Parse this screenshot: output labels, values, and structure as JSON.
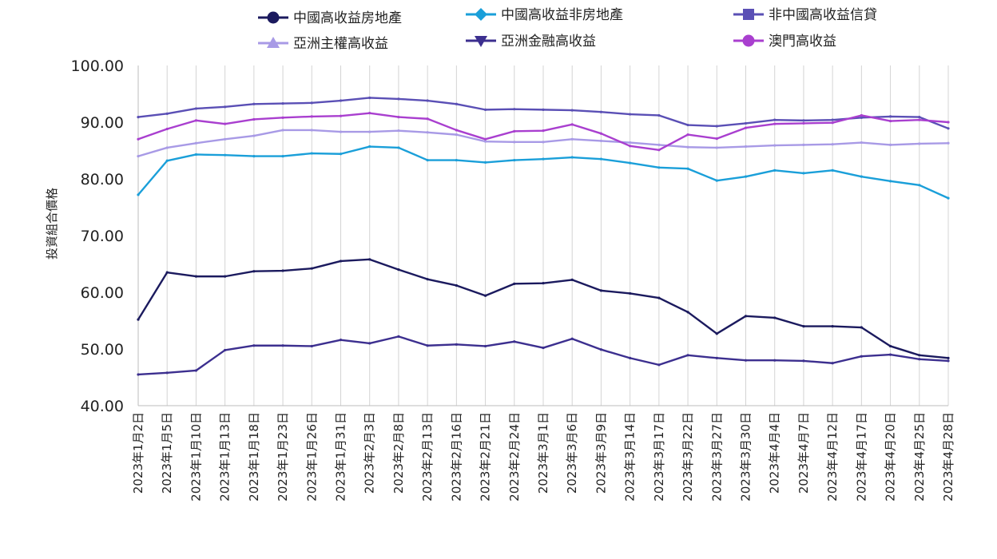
{
  "chart_data": {
    "type": "line",
    "title": "",
    "xlabel": "",
    "ylabel": "投資組合價格",
    "ylim": [
      40,
      100
    ],
    "y_ticks": [
      "40.00",
      "50.00",
      "60.00",
      "70.00",
      "80.00",
      "90.00",
      "100.00"
    ],
    "grid": {
      "x": true,
      "y": false
    },
    "legend_position": "top",
    "categories": [
      "2023年1月2日",
      "2023年1月5日",
      "2023年1月10日",
      "2023年1月13日",
      "2023年1月18日",
      "2023年1月23日",
      "2023年1月26日",
      "2023年1月31日",
      "2023年2月3日",
      "2023年2月8日",
      "2023年2月13日",
      "2023年2月16日",
      "2023年2月21日",
      "2023年2月24日",
      "2023年3月1日",
      "2023年3月6日",
      "2023年3月9日",
      "2023年3月14日",
      "2023年3月17日",
      "2023年3月22日",
      "2023年3月27日",
      "2023年3月30日",
      "2023年4月4日",
      "2023年4月7日",
      "2023年4月12日",
      "2023年4月17日",
      "2023年4月20日",
      "2023年4月25日",
      "2023年4月28日"
    ],
    "series": [
      {
        "name": "中國高收益房地產",
        "color": "#1b1a5e",
        "marker": "circle",
        "values": [
          55.2,
          63.5,
          62.8,
          62.8,
          63.7,
          63.8,
          64.2,
          65.5,
          65.8,
          64.0,
          62.3,
          61.2,
          59.4,
          61.5,
          61.6,
          62.2,
          60.3,
          59.8,
          59.0,
          56.5,
          52.7,
          55.8,
          55.5,
          54.0,
          54.0,
          53.8,
          50.5,
          48.9,
          48.4
        ]
      },
      {
        "name": "中國高收益非房地產",
        "color": "#1a9fd9",
        "marker": "diamond",
        "values": [
          77.2,
          83.2,
          84.3,
          84.2,
          84.0,
          84.0,
          84.5,
          84.4,
          85.7,
          85.5,
          83.3,
          83.3,
          82.9,
          83.3,
          83.5,
          83.8,
          83.5,
          82.8,
          82.0,
          81.8,
          79.7,
          80.4,
          81.5,
          81.0,
          81.5,
          80.4,
          79.6,
          78.9,
          76.6
        ]
      },
      {
        "name": "非中國高收益信貸",
        "color": "#5a4fb5",
        "marker": "square",
        "values": [
          90.9,
          91.5,
          92.4,
          92.7,
          93.2,
          93.3,
          93.4,
          93.8,
          94.3,
          94.1,
          93.8,
          93.2,
          92.2,
          92.3,
          92.2,
          92.1,
          91.8,
          91.4,
          91.2,
          89.5,
          89.3,
          89.8,
          90.4,
          90.3,
          90.4,
          90.8,
          91.0,
          90.9,
          88.9
        ]
      },
      {
        "name": "亞洲主權高收益",
        "color": "#a89ae6",
        "marker": "triangle-up",
        "values": [
          84.0,
          85.5,
          86.3,
          87.0,
          87.6,
          88.6,
          88.6,
          88.3,
          88.3,
          88.5,
          88.2,
          87.8,
          86.6,
          86.5,
          86.5,
          87.0,
          86.7,
          86.4,
          86.0,
          85.6,
          85.5,
          85.7,
          85.9,
          86.0,
          86.1,
          86.4,
          86.0,
          86.2,
          86.3
        ]
      },
      {
        "name": "亞洲金融高收益",
        "color": "#3c2f8f",
        "marker": "triangle-down",
        "values": [
          45.5,
          45.8,
          46.2,
          49.8,
          50.6,
          50.6,
          50.5,
          51.6,
          51.0,
          52.2,
          50.6,
          50.8,
          50.5,
          51.3,
          50.2,
          51.8,
          49.9,
          48.4,
          47.2,
          48.9,
          48.4,
          48.0,
          48.0,
          47.9,
          47.5,
          48.7,
          49.0,
          48.2,
          47.9
        ]
      },
      {
        "name": "澳門高收益",
        "color": "#a93fcf",
        "marker": "circle",
        "values": [
          87.0,
          88.8,
          90.3,
          89.7,
          90.5,
          90.8,
          91.0,
          91.1,
          91.6,
          90.9,
          90.6,
          88.6,
          87.0,
          88.4,
          88.5,
          89.6,
          88.0,
          85.8,
          85.1,
          87.8,
          87.1,
          89.0,
          89.7,
          89.8,
          89.9,
          91.2,
          90.2,
          90.4,
          90.0
        ]
      }
    ]
  }
}
